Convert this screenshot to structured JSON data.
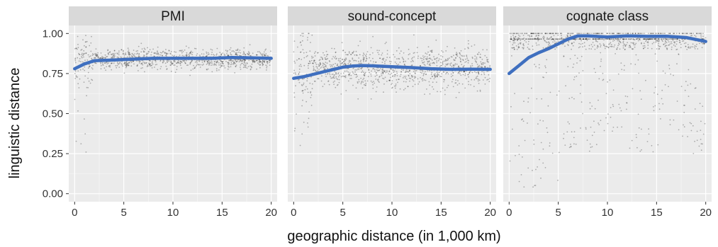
{
  "figure": {
    "xlabel": "geographic distance (in 1,000 km)",
    "ylabel": "linguistic distance"
  },
  "chart_data": [
    {
      "type": "scatter",
      "title": "PMI",
      "xlim": [
        -0.6,
        20.6
      ],
      "ylim": [
        -0.05,
        1.05
      ],
      "x_ticks": [
        0,
        5,
        10,
        15,
        20
      ],
      "y_ticks": [
        0.0,
        0.25,
        0.5,
        0.75,
        1.0
      ],
      "y_tick_labels": [
        "0.00",
        "0.25",
        "0.50",
        "0.75",
        "1.00"
      ],
      "grid": true,
      "point_cloud": {
        "mean": 0.84,
        "spread": 0.03,
        "outlier_low": 0.25
      },
      "series": [
        {
          "x": [
            0,
            1,
            2,
            4,
            6,
            8,
            10,
            12,
            14,
            16,
            18,
            20
          ],
          "y": [
            0.78,
            0.81,
            0.83,
            0.835,
            0.84,
            0.845,
            0.845,
            0.845,
            0.845,
            0.85,
            0.848,
            0.845
          ]
        }
      ]
    },
    {
      "type": "scatter",
      "title": "sound-concept",
      "xlim": [
        -0.6,
        20.6
      ],
      "ylim": [
        -0.05,
        1.05
      ],
      "x_ticks": [
        0,
        5,
        10,
        15,
        20
      ],
      "y_ticks": [
        0.0,
        0.25,
        0.5,
        0.75,
        1.0
      ],
      "y_tick_labels": [
        "0.00",
        "0.25",
        "0.50",
        "0.75",
        "1.00"
      ],
      "grid": true,
      "point_cloud": {
        "mean": 0.78,
        "spread": 0.06,
        "outlier_low": 0.3
      },
      "series": [
        {
          "x": [
            0,
            1,
            2,
            3,
            4,
            5,
            6,
            7,
            8,
            10,
            12,
            14,
            16,
            18,
            20
          ],
          "y": [
            0.72,
            0.73,
            0.745,
            0.76,
            0.775,
            0.79,
            0.797,
            0.8,
            0.798,
            0.793,
            0.787,
            0.78,
            0.776,
            0.777,
            0.776
          ]
        }
      ]
    },
    {
      "type": "scatter",
      "title": "cognate class",
      "xlim": [
        -0.6,
        20.6
      ],
      "ylim": [
        -0.05,
        1.05
      ],
      "x_ticks": [
        0,
        5,
        10,
        15,
        20
      ],
      "y_ticks": [
        0.0,
        0.25,
        0.5,
        0.75,
        1.0
      ],
      "y_tick_labels": [
        "0.00",
        "0.25",
        "0.50",
        "0.75",
        "1.00"
      ],
      "grid": true,
      "point_cloud": {
        "mean": 0.95,
        "spread": 0.03,
        "outlier_low": 0.0
      },
      "series": [
        {
          "x": [
            0,
            1,
            2,
            3,
            4,
            5,
            6,
            7,
            8,
            10,
            12,
            14,
            16,
            18,
            20
          ],
          "y": [
            0.75,
            0.8,
            0.85,
            0.88,
            0.905,
            0.935,
            0.965,
            0.985,
            0.985,
            0.978,
            0.985,
            0.982,
            0.983,
            0.975,
            0.95
          ]
        }
      ]
    }
  ],
  "colors": {
    "panel_bg": "#ebebeb",
    "strip_bg": "#d9d9d9",
    "grid": "#ffffff",
    "points": "#000000",
    "trend": "#3f6fbf"
  }
}
